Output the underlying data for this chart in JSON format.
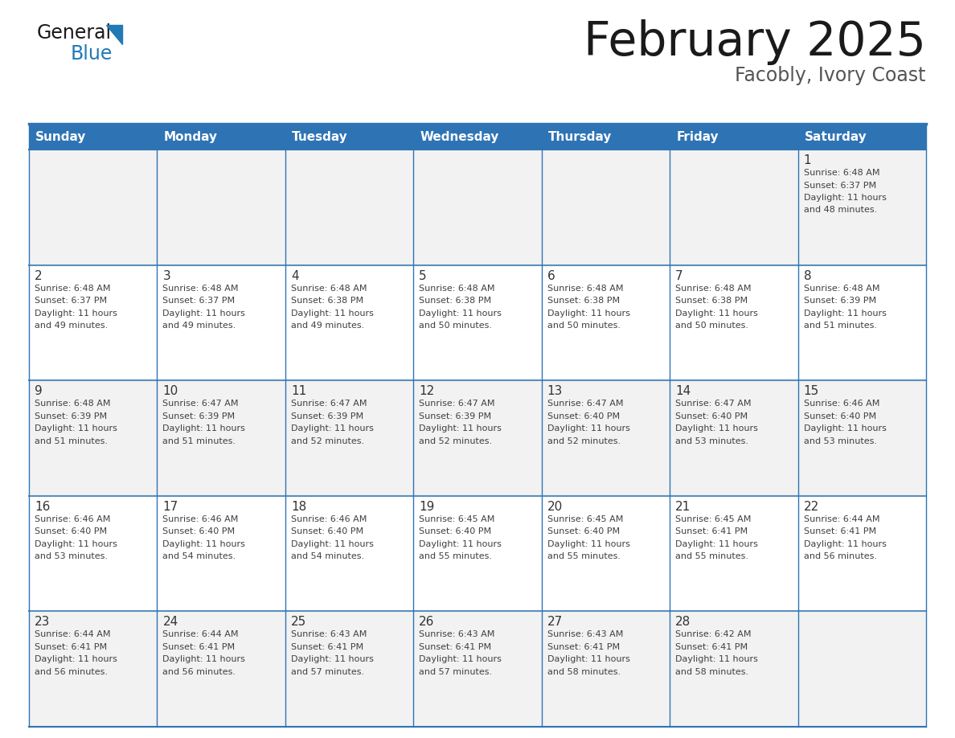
{
  "title": "February 2025",
  "subtitle": "Facobly, Ivory Coast",
  "days_of_week": [
    "Sunday",
    "Monday",
    "Tuesday",
    "Wednesday",
    "Thursday",
    "Friday",
    "Saturday"
  ],
  "header_bg": "#2E74B5",
  "header_text": "#FFFFFF",
  "cell_bg_odd": "#F2F2F2",
  "cell_bg_even": "#FFFFFF",
  "border_color": "#2E74B5",
  "border_inner": "#A0A0A0",
  "text_color": "#404040",
  "day_num_color": "#333333",
  "title_color": "#1a1a1a",
  "subtitle_color": "#555555",
  "logo_general_color": "#1a1a1a",
  "logo_blue_color": "#2179B5",
  "weeks": [
    [
      null,
      null,
      null,
      null,
      null,
      null,
      1
    ],
    [
      2,
      3,
      4,
      5,
      6,
      7,
      8
    ],
    [
      9,
      10,
      11,
      12,
      13,
      14,
      15
    ],
    [
      16,
      17,
      18,
      19,
      20,
      21,
      22
    ],
    [
      23,
      24,
      25,
      26,
      27,
      28,
      null
    ]
  ],
  "sun_data": {
    "1": {
      "rise": "6:48 AM",
      "set": "6:37 PM",
      "daylight": "11 hours",
      "daylight2": "and 48 minutes."
    },
    "2": {
      "rise": "6:48 AM",
      "set": "6:37 PM",
      "daylight": "11 hours",
      "daylight2": "and 49 minutes."
    },
    "3": {
      "rise": "6:48 AM",
      "set": "6:37 PM",
      "daylight": "11 hours",
      "daylight2": "and 49 minutes."
    },
    "4": {
      "rise": "6:48 AM",
      "set": "6:38 PM",
      "daylight": "11 hours",
      "daylight2": "and 49 minutes."
    },
    "5": {
      "rise": "6:48 AM",
      "set": "6:38 PM",
      "daylight": "11 hours",
      "daylight2": "and 50 minutes."
    },
    "6": {
      "rise": "6:48 AM",
      "set": "6:38 PM",
      "daylight": "11 hours",
      "daylight2": "and 50 minutes."
    },
    "7": {
      "rise": "6:48 AM",
      "set": "6:38 PM",
      "daylight": "11 hours",
      "daylight2": "and 50 minutes."
    },
    "8": {
      "rise": "6:48 AM",
      "set": "6:39 PM",
      "daylight": "11 hours",
      "daylight2": "and 51 minutes."
    },
    "9": {
      "rise": "6:48 AM",
      "set": "6:39 PM",
      "daylight": "11 hours",
      "daylight2": "and 51 minutes."
    },
    "10": {
      "rise": "6:47 AM",
      "set": "6:39 PM",
      "daylight": "11 hours",
      "daylight2": "and 51 minutes."
    },
    "11": {
      "rise": "6:47 AM",
      "set": "6:39 PM",
      "daylight": "11 hours",
      "daylight2": "and 52 minutes."
    },
    "12": {
      "rise": "6:47 AM",
      "set": "6:39 PM",
      "daylight": "11 hours",
      "daylight2": "and 52 minutes."
    },
    "13": {
      "rise": "6:47 AM",
      "set": "6:40 PM",
      "daylight": "11 hours",
      "daylight2": "and 52 minutes."
    },
    "14": {
      "rise": "6:47 AM",
      "set": "6:40 PM",
      "daylight": "11 hours",
      "daylight2": "and 53 minutes."
    },
    "15": {
      "rise": "6:46 AM",
      "set": "6:40 PM",
      "daylight": "11 hours",
      "daylight2": "and 53 minutes."
    },
    "16": {
      "rise": "6:46 AM",
      "set": "6:40 PM",
      "daylight": "11 hours",
      "daylight2": "and 53 minutes."
    },
    "17": {
      "rise": "6:46 AM",
      "set": "6:40 PM",
      "daylight": "11 hours",
      "daylight2": "and 54 minutes."
    },
    "18": {
      "rise": "6:46 AM",
      "set": "6:40 PM",
      "daylight": "11 hours",
      "daylight2": "and 54 minutes."
    },
    "19": {
      "rise": "6:45 AM",
      "set": "6:40 PM",
      "daylight": "11 hours",
      "daylight2": "and 55 minutes."
    },
    "20": {
      "rise": "6:45 AM",
      "set": "6:40 PM",
      "daylight": "11 hours",
      "daylight2": "and 55 minutes."
    },
    "21": {
      "rise": "6:45 AM",
      "set": "6:41 PM",
      "daylight": "11 hours",
      "daylight2": "and 55 minutes."
    },
    "22": {
      "rise": "6:44 AM",
      "set": "6:41 PM",
      "daylight": "11 hours",
      "daylight2": "and 56 minutes."
    },
    "23": {
      "rise": "6:44 AM",
      "set": "6:41 PM",
      "daylight": "11 hours",
      "daylight2": "and 56 minutes."
    },
    "24": {
      "rise": "6:44 AM",
      "set": "6:41 PM",
      "daylight": "11 hours",
      "daylight2": "and 56 minutes."
    },
    "25": {
      "rise": "6:43 AM",
      "set": "6:41 PM",
      "daylight": "11 hours",
      "daylight2": "and 57 minutes."
    },
    "26": {
      "rise": "6:43 AM",
      "set": "6:41 PM",
      "daylight": "11 hours",
      "daylight2": "and 57 minutes."
    },
    "27": {
      "rise": "6:43 AM",
      "set": "6:41 PM",
      "daylight": "11 hours",
      "daylight2": "and 58 minutes."
    },
    "28": {
      "rise": "6:42 AM",
      "set": "6:41 PM",
      "daylight": "11 hours",
      "daylight2": "and 58 minutes."
    }
  }
}
